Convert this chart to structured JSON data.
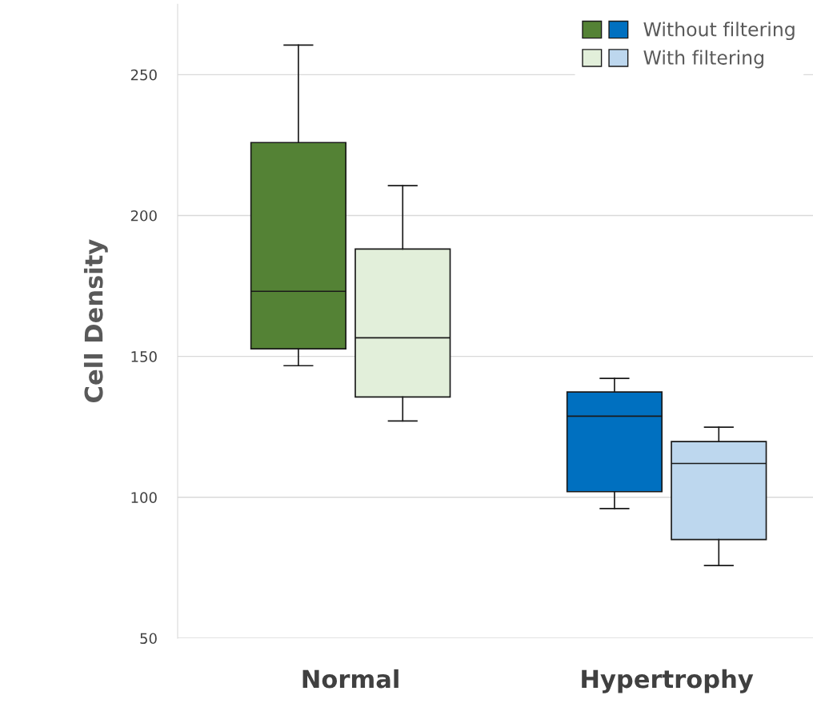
{
  "chart_data": {
    "type": "box",
    "ylabel": "Cell Density",
    "categories": [
      "Normal",
      "Hypertrophy"
    ],
    "ylim": [
      50,
      275
    ],
    "yticks": [
      50,
      100,
      150,
      200,
      250
    ],
    "grid": "y",
    "legend": "top right",
    "series": [
      {
        "name": "Without filtering",
        "colors": [
          "#548235",
          "#0070c0"
        ],
        "boxes": [
          {
            "low": 146.7,
            "q1": 152.7,
            "median": 173.1,
            "q3": 225.9,
            "high": 260.5
          },
          {
            "low": 96.0,
            "q1": 102.0,
            "median": 128.8,
            "q3": 137.4,
            "high": 142.2
          }
        ]
      },
      {
        "name": "With filtering",
        "colors": [
          "#e2efda",
          "#bdd7ee"
        ],
        "boxes": [
          {
            "low": 127.1,
            "q1": 135.6,
            "median": 156.6,
            "q3": 188.1,
            "high": 210.6
          },
          {
            "low": 75.8,
            "q1": 85.0,
            "median": 112.0,
            "q3": 119.8,
            "high": 124.9
          }
        ]
      }
    ]
  }
}
